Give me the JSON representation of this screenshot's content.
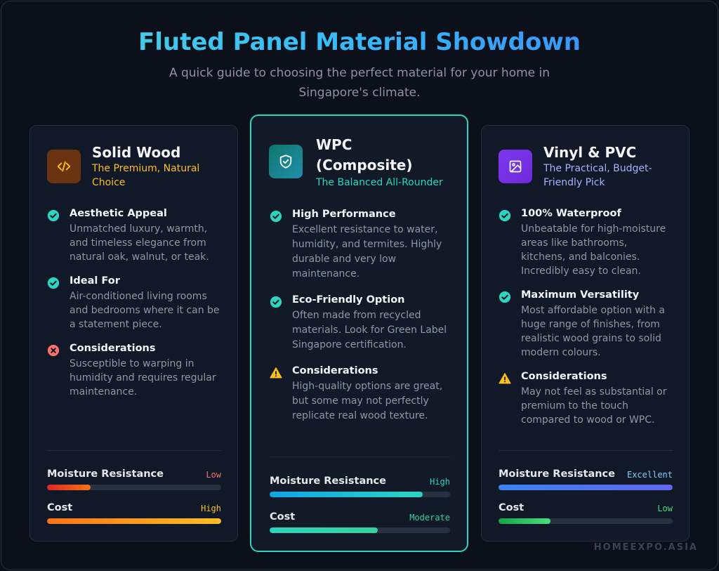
{
  "header": {
    "title": "Fluted Panel Material Showdown",
    "subtitle": "A quick guide to choosing the perfect material for your home in Singapore's climate."
  },
  "cards": [
    {
      "name": "Solid Wood",
      "tagline": "The Premium, Natural Choice",
      "icon": "code-icon",
      "accent": "#fbbf24",
      "features": [
        {
          "icon": "check-circle-icon",
          "title": "Aesthetic Appeal",
          "desc": "Unmatched luxury, warmth, and timeless elegance from natural oak, walnut, or teak."
        },
        {
          "icon": "check-circle-icon",
          "title": "Ideal For",
          "desc": "Air-conditioned living rooms and bedrooms where it can be a statement piece."
        },
        {
          "icon": "x-circle-icon",
          "title": "Considerations",
          "desc": "Susceptible to warping in humidity and requires regular maintenance."
        }
      ],
      "metrics": [
        {
          "label": "Moisture Resistance",
          "value": "Low",
          "level": 0.25,
          "color": "#f87171"
        },
        {
          "label": "Cost",
          "value": "High",
          "level": 1.0,
          "color": "#fbbf24"
        }
      ]
    },
    {
      "name": "WPC (Composite)",
      "tagline": "The Balanced All-Rounder",
      "icon": "shield-check-icon",
      "accent": "#2dd4bf",
      "features": [
        {
          "icon": "check-circle-icon",
          "title": "High Performance",
          "desc": "Excellent resistance to water, humidity, and termites. Highly durable and very low maintenance."
        },
        {
          "icon": "check-circle-icon",
          "title": "Eco-Friendly Option",
          "desc": "Often made from recycled materials. Look for Green Label Singapore certification."
        },
        {
          "icon": "warning-icon",
          "title": "Considerations",
          "desc": "High-quality options are great, but some may not perfectly replicate real wood texture."
        }
      ],
      "metrics": [
        {
          "label": "Moisture Resistance",
          "value": "High",
          "level": 0.85,
          "color": "#2dd4bf"
        },
        {
          "label": "Cost",
          "value": "Moderate",
          "level": 0.6,
          "color": "#34d399"
        }
      ]
    },
    {
      "name": "Vinyl & PVC",
      "tagline": "The Practical, Budget-Friendly Pick",
      "icon": "image-icon",
      "accent": "#a5b4fc",
      "features": [
        {
          "icon": "check-circle-icon",
          "title": "100% Waterproof",
          "desc": "Unbeatable for high-moisture areas like bathrooms, kitchens, and balconies. Incredibly easy to clean."
        },
        {
          "icon": "check-circle-icon",
          "title": "Maximum Versatility",
          "desc": "Most affordable option with a huge range of finishes, from realistic wood grains to solid modern colours."
        },
        {
          "icon": "warning-icon",
          "title": "Considerations",
          "desc": "May not feel as substantial or premium to the touch compared to wood or WPC."
        }
      ],
      "metrics": [
        {
          "label": "Moisture Resistance",
          "value": "Excellent",
          "level": 1.0,
          "color": "#7dd3fc"
        },
        {
          "label": "Cost",
          "value": "Low",
          "level": 0.3,
          "color": "#4ade80"
        }
      ]
    }
  ],
  "footer": {
    "brand": "HOMEEXPO.ASIA"
  },
  "colors": {
    "background": "#0b101b",
    "card": "#111827",
    "check": "#2dd4bf",
    "cross": "#f87171",
    "warning": "#fbbf24"
  }
}
